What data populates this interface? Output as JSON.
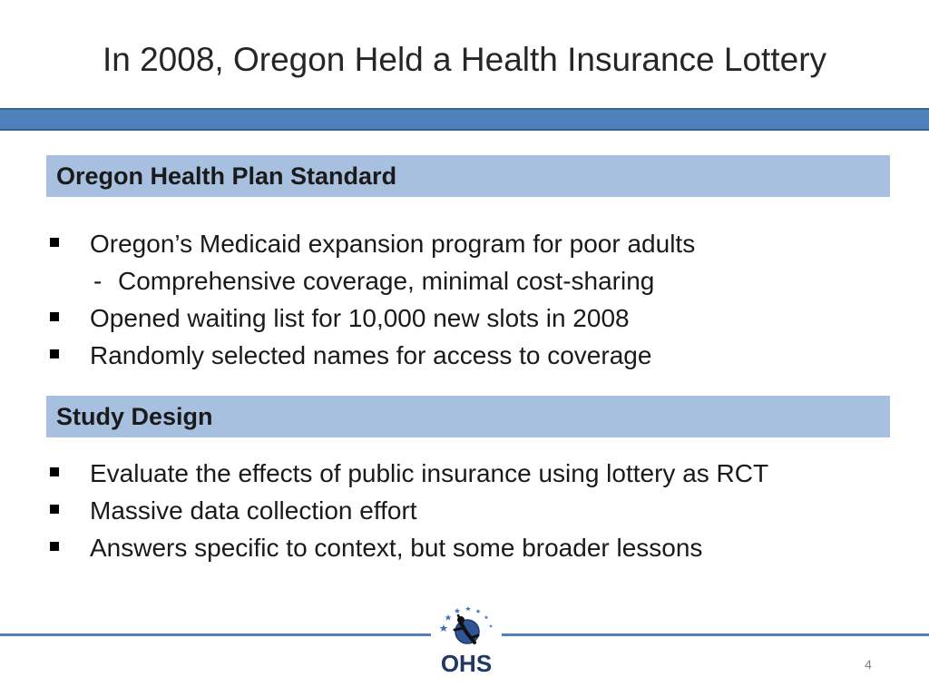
{
  "slide": {
    "title": "In 2008, Oregon Held a Health Insurance Lottery",
    "page_number": "4"
  },
  "sections": [
    {
      "header": "Oregon Health Plan Standard",
      "items": [
        {
          "text": "Oregon’s Medicaid expansion program for poor adults"
        },
        {
          "dash": "-",
          "text": "Comprehensive coverage, minimal cost-sharing"
        },
        {
          "text": "Opened waiting list for 10,000 new slots in 2008"
        },
        {
          "text": "Randomly selected names for access to coverage"
        }
      ]
    },
    {
      "header": "Study Design",
      "items": [
        {
          "text": "Evaluate the effects of public insurance using lottery as RCT"
        },
        {
          "text": "Massive data collection effort"
        },
        {
          "text": "Answers specific to context, but some broader lessons"
        }
      ]
    }
  ],
  "logo": {
    "text": "OHS",
    "icon": "ohs-logo-icon"
  },
  "colors": {
    "accent_bar": "#4f81bd",
    "section_header_bg": "#a7c0df",
    "logo_text": "#1f3864"
  }
}
